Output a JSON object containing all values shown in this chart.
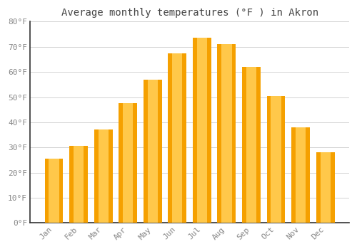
{
  "title": "Average monthly temperatures (°F ) in Akron",
  "months": [
    "Jan",
    "Feb",
    "Mar",
    "Apr",
    "May",
    "Jun",
    "Jul",
    "Aug",
    "Sep",
    "Oct",
    "Nov",
    "Dec"
  ],
  "values": [
    25.5,
    30.5,
    37.0,
    47.5,
    57.0,
    67.5,
    73.5,
    71.0,
    62.0,
    50.5,
    38.0,
    28.0
  ],
  "bar_color_center": "#FFC84A",
  "bar_color_edge": "#F5A000",
  "background_color": "#FFFFFF",
  "plot_bg_color": "#FFFFFF",
  "grid_color": "#CCCCCC",
  "ylim": [
    0,
    80
  ],
  "yticks": [
    0,
    10,
    20,
    30,
    40,
    50,
    60,
    70,
    80
  ],
  "ytick_labels": [
    "0°F",
    "10°F",
    "20°F",
    "30°F",
    "40°F",
    "50°F",
    "60°F",
    "70°F",
    "80°F"
  ],
  "title_fontsize": 10,
  "tick_fontsize": 8,
  "tick_color": "#888888",
  "left_spine_color": "#333333",
  "bottom_spine_color": "#333333",
  "bar_width": 0.75
}
